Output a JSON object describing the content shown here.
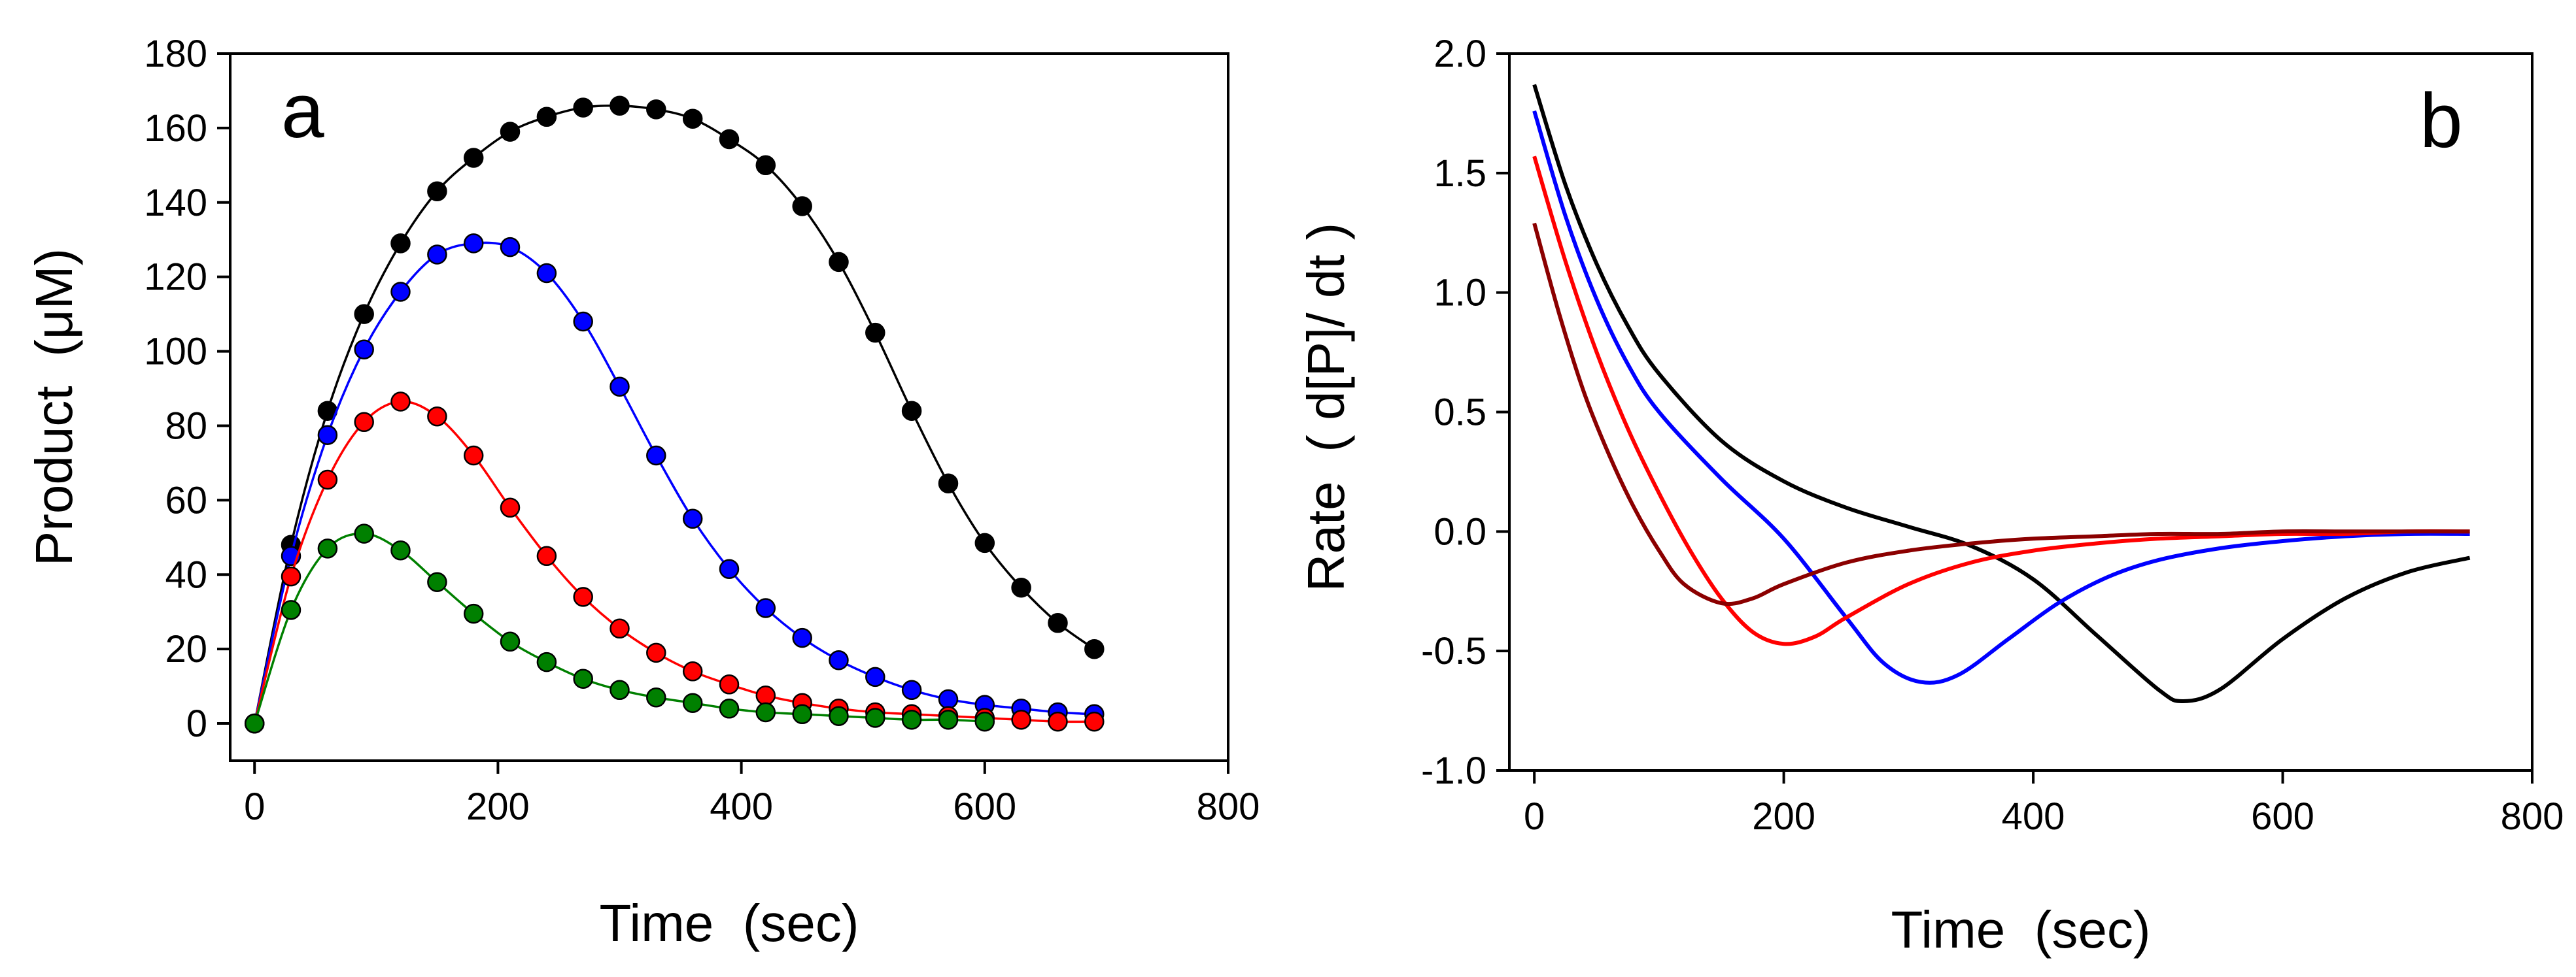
{
  "chart_data": [
    {
      "type": "scatter",
      "panel_label": "a",
      "xlabel": "Time  (sec)",
      "ylabel": "Product  (μM)",
      "xlim": [
        -20,
        800
      ],
      "ylim": [
        -10,
        180
      ],
      "xticks": [
        0,
        200,
        400,
        600,
        800
      ],
      "yticks": [
        0,
        20,
        40,
        60,
        80,
        100,
        120,
        140,
        160,
        180
      ],
      "grid": false,
      "series": [
        {
          "name": "black",
          "color": "#000000",
          "x": [
            0,
            30,
            60,
            90,
            120,
            150,
            180,
            210,
            240,
            270,
            300,
            330,
            360,
            390,
            420,
            450,
            480,
            510,
            540,
            570,
            600,
            630,
            660,
            690
          ],
          "y": [
            0,
            48,
            84,
            110,
            129,
            143,
            152,
            159,
            163,
            165.5,
            166,
            165,
            162.5,
            157,
            150,
            139,
            124,
            105,
            84,
            64.5,
            48.5,
            36.5,
            27,
            20
          ]
        },
        {
          "name": "blue",
          "color": "#0000ff",
          "x": [
            0,
            30,
            60,
            90,
            120,
            150,
            180,
            210,
            240,
            270,
            300,
            330,
            360,
            390,
            420,
            450,
            480,
            510,
            540,
            570,
            600,
            630,
            660,
            690
          ],
          "y": [
            0,
            45,
            77.5,
            100.5,
            116,
            126,
            129,
            128,
            121,
            108,
            90.5,
            72,
            55,
            41.5,
            31,
            23,
            17,
            12.5,
            9,
            6.5,
            5,
            4,
            3,
            2.5
          ]
        },
        {
          "name": "red",
          "color": "#ff0000",
          "x": [
            0,
            30,
            60,
            90,
            120,
            150,
            180,
            210,
            240,
            270,
            300,
            330,
            360,
            390,
            420,
            450,
            480,
            510,
            540,
            570,
            600,
            630,
            660,
            690
          ],
          "y": [
            0,
            39.5,
            65.5,
            81,
            86.5,
            82.5,
            72,
            58,
            45,
            34,
            25.5,
            19,
            14,
            10.5,
            7.5,
            5.5,
            4,
            3,
            2.5,
            2,
            1.5,
            1,
            0.5,
            0.5
          ]
        },
        {
          "name": "green",
          "color": "#008000",
          "x": [
            0,
            30,
            60,
            90,
            120,
            150,
            180,
            210,
            240,
            270,
            300,
            330,
            360,
            390,
            420,
            450,
            480,
            510,
            540,
            570,
            600
          ],
          "y": [
            0,
            30.5,
            47,
            51,
            46.5,
            38,
            29.5,
            22,
            16.5,
            12,
            9,
            7,
            5.5,
            4,
            3,
            2.5,
            2,
            1.5,
            1,
            1,
            0.5
          ]
        }
      ]
    },
    {
      "type": "line",
      "panel_label": "b",
      "xlabel": "Time  (sec)",
      "ylabel": "Rate  ( d[P]/ dt )",
      "xlim": [
        -20,
        800
      ],
      "ylim": [
        -1.0,
        2.0
      ],
      "xticks": [
        0,
        200,
        400,
        600,
        800
      ],
      "yticks": [
        -1.0,
        -0.5,
        0.0,
        0.5,
        1.0,
        1.5,
        2.0
      ],
      "ytick_labels": [
        "-1.0",
        "-0.5",
        "0.0",
        "0.5",
        "1.0",
        "1.5",
        "2.0"
      ],
      "grid": false,
      "series": [
        {
          "name": "black",
          "color": "#000000",
          "x": [
            0,
            25,
            50,
            75,
            100,
            150,
            200,
            250,
            300,
            350,
            400,
            450,
            500,
            520,
            550,
            600,
            650,
            700,
            750
          ],
          "y": [
            1.87,
            1.45,
            1.12,
            0.86,
            0.66,
            0.38,
            0.21,
            0.1,
            0.02,
            -0.06,
            -0.2,
            -0.43,
            -0.66,
            -0.71,
            -0.66,
            -0.45,
            -0.28,
            -0.17,
            -0.11
          ]
        },
        {
          "name": "blue",
          "color": "#0000ff",
          "x": [
            0,
            25,
            50,
            75,
            100,
            150,
            200,
            250,
            280,
            310,
            340,
            380,
            420,
            460,
            500,
            550,
            600,
            650,
            700,
            750
          ],
          "y": [
            1.76,
            1.32,
            0.97,
            0.7,
            0.5,
            0.22,
            -0.03,
            -0.36,
            -0.55,
            -0.63,
            -0.6,
            -0.45,
            -0.3,
            -0.19,
            -0.12,
            -0.07,
            -0.04,
            -0.02,
            -0.01,
            -0.01
          ]
        },
        {
          "name": "red",
          "color": "#ff0000",
          "x": [
            0,
            25,
            50,
            75,
            100,
            125,
            150,
            175,
            200,
            225,
            250,
            300,
            350,
            400,
            450,
            500,
            550,
            600,
            650,
            700,
            750
          ],
          "y": [
            1.57,
            1.13,
            0.75,
            0.43,
            0.16,
            -0.08,
            -0.28,
            -0.42,
            -0.47,
            -0.44,
            -0.36,
            -0.22,
            -0.13,
            -0.08,
            -0.05,
            -0.03,
            -0.02,
            -0.01,
            -0.01,
            0,
            0
          ]
        },
        {
          "name": "darkred",
          "color": "#8b0000",
          "x": [
            0,
            20,
            40,
            60,
            80,
            100,
            120,
            150,
            175,
            200,
            250,
            300,
            350,
            400,
            450,
            500,
            550,
            600,
            650,
            700,
            750
          ],
          "y": [
            1.29,
            0.91,
            0.58,
            0.32,
            0.1,
            -0.08,
            -0.22,
            -0.3,
            -0.28,
            -0.22,
            -0.13,
            -0.08,
            -0.05,
            -0.03,
            -0.02,
            -0.01,
            -0.01,
            0,
            0,
            0,
            0
          ]
        }
      ]
    }
  ]
}
